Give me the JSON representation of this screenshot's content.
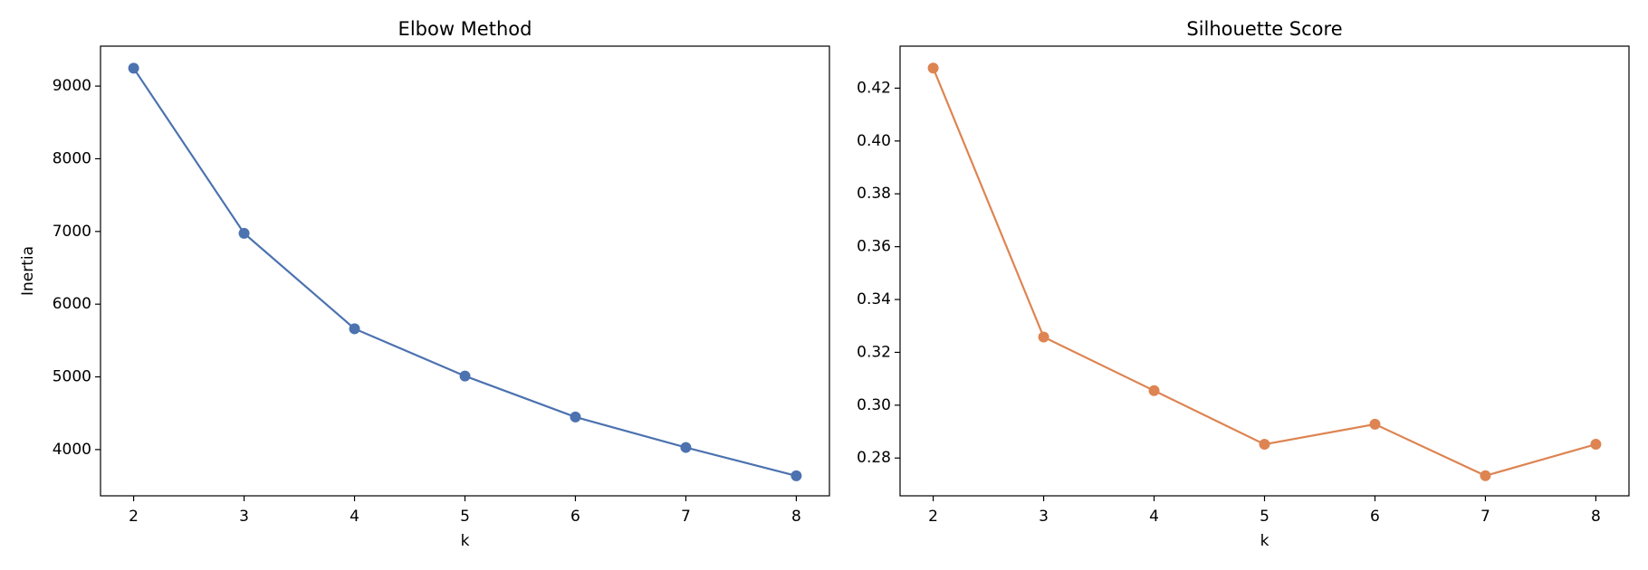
{
  "chart_data": [
    {
      "type": "line",
      "title": "Elbow Method",
      "xlabel": "k",
      "ylabel": "Inertia",
      "x": [
        2,
        3,
        4,
        5,
        6,
        7,
        8
      ],
      "values": [
        9245,
        6975,
        5662,
        5012,
        4448,
        4029,
        3639
      ],
      "color": "#4c72b0",
      "xlim": [
        1.7,
        8.3
      ],
      "xticks": [
        2,
        3,
        4,
        5,
        6,
        7,
        8
      ],
      "ylim": [
        3364,
        9549
      ],
      "yticks": [
        4000,
        5000,
        6000,
        7000,
        8000,
        9000
      ]
    },
    {
      "type": "line",
      "title": "Silhouette Score",
      "xlabel": "k",
      "x": [
        2,
        3,
        4,
        5,
        6,
        7,
        8
      ],
      "values": [
        0.4276,
        0.3258,
        0.3055,
        0.2852,
        0.2928,
        0.2733,
        0.2852
      ],
      "color": "#dd8452",
      "xlim": [
        1.7,
        8.3
      ],
      "xticks": [
        2,
        3,
        4,
        5,
        6,
        7,
        8
      ],
      "ylim": [
        0.2657,
        0.4359
      ],
      "yticks": [
        {
          "value": 0.28,
          "label": "0.28"
        },
        {
          "value": 0.3,
          "label": "0.30"
        },
        {
          "value": 0.32,
          "label": "0.32"
        },
        {
          "value": 0.34,
          "label": "0.34"
        },
        {
          "value": 0.36,
          "label": "0.36"
        },
        {
          "value": 0.38,
          "label": "0.38"
        },
        {
          "value": 0.4,
          "label": "0.40"
        },
        {
          "value": 0.42,
          "label": "0.42"
        }
      ]
    }
  ]
}
